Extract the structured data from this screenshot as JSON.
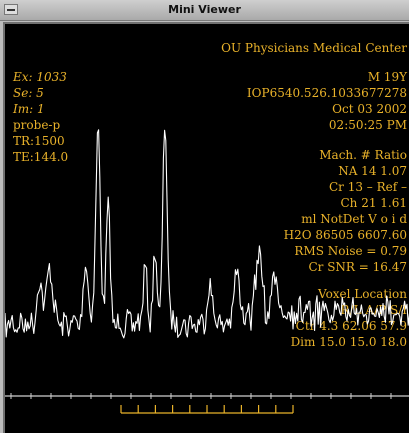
{
  "window": {
    "title": "Mini Viewer"
  },
  "colors": {
    "overlay": "#e9b22a",
    "spectrum": "#ffffff",
    "background": "#000000"
  },
  "icons": {
    "menu": "window-menu-icon"
  },
  "header": {
    "institution": "OU Physicians Medical Center",
    "exam": "Ex: 1033",
    "series": "Se: 5",
    "image": "Im: 1",
    "protocol": "probe-p",
    "tr": "TR:1500",
    "te": "TE:144.0",
    "patient_id": "M 19Y",
    "study_uid": "IOP6540.526.1033677278",
    "date": "Oct 03 2002",
    "time": "02:50:25 PM"
  },
  "metabolites": {
    "header": "Mach. #  Ratio",
    "rows": [
      "NA    14   1.07",
      "Cr    13  – Ref –",
      "Ch    21   1.61"
    ],
    "ml": "ml  NotDet  V o i d",
    "h2o": "H2O  86505  6607.60",
    "rms": "RMS Noise  =  0.79",
    "snr": "Cr SNR  =  16.47"
  },
  "voxel": {
    "title": "Voxel Location",
    "axes": "R/L   A/P   S/I",
    "ctr": "Ctr 4.3 62.06 57.9",
    "dim": "Dim 15.0 15.0 18.0"
  }
}
